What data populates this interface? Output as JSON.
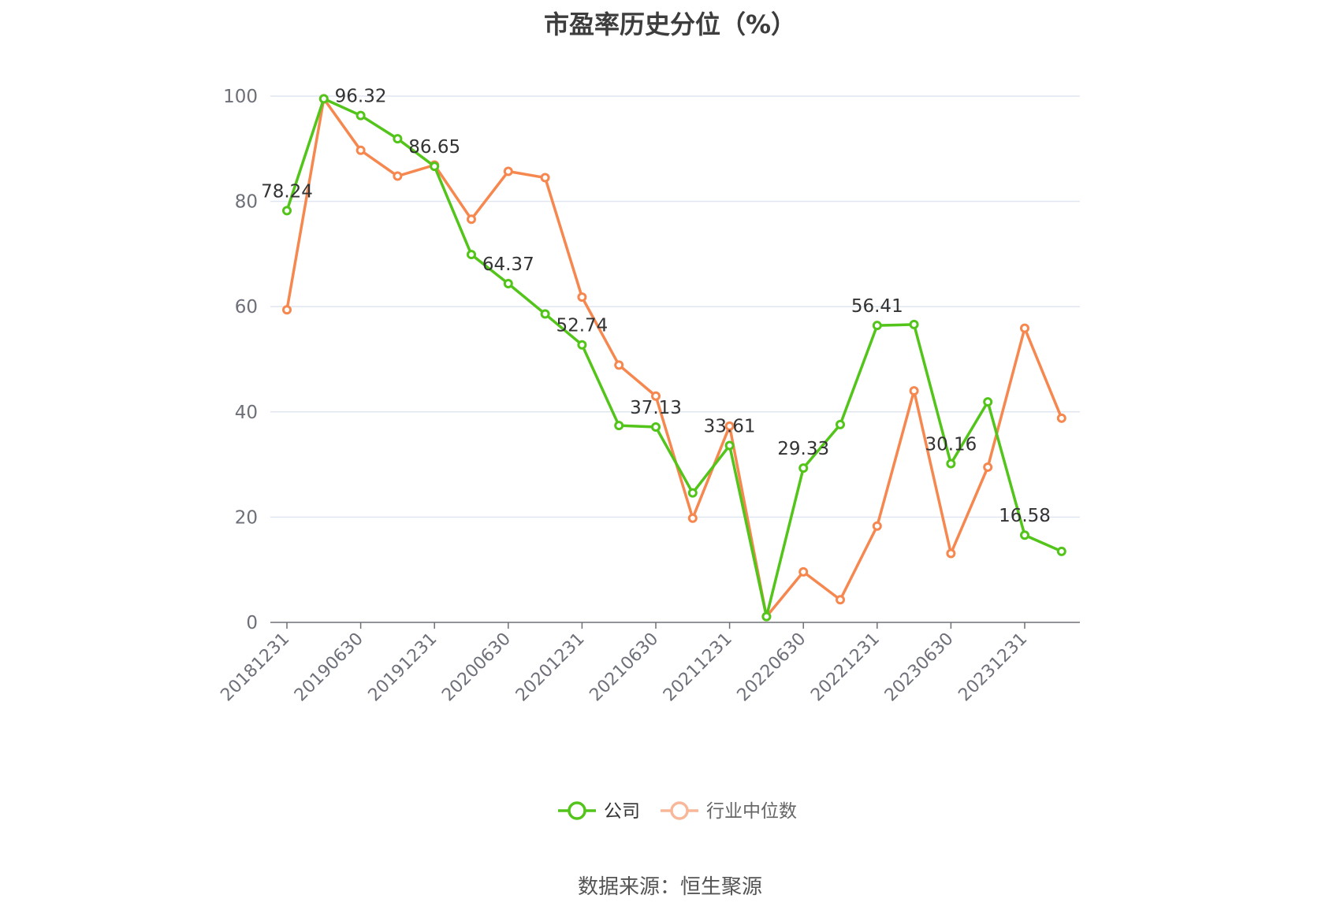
{
  "title": "市盈率历史分位（%）",
  "source": "数据来源：恒生聚源",
  "colors": {
    "company": "#52c41a",
    "industry": "#f5874f",
    "industry_legend": "#f9b79a",
    "grid": "#e0e6f1",
    "axis": "#6e7079"
  },
  "chart_data": {
    "type": "line",
    "title": "市盈率历史分位（%）",
    "ylim": [
      0,
      100
    ],
    "yticks": [
      0,
      20,
      40,
      60,
      80,
      100
    ],
    "x": [
      "20181231",
      "20190331",
      "20190630",
      "20190930",
      "20191231",
      "20200331",
      "20200630",
      "20200930",
      "20201231",
      "20210331",
      "20210630",
      "20210930",
      "20211231",
      "20220331",
      "20220630",
      "20220930",
      "20221231",
      "20230331",
      "20230630",
      "20230930",
      "20231231",
      "20240331"
    ],
    "xtick_labels": [
      "20181231",
      "20190630",
      "20191231",
      "20200630",
      "20201231",
      "20210630",
      "20211231",
      "20220630",
      "20221231",
      "20230630",
      "20231231"
    ],
    "grid": true,
    "legend_placement": "bottom",
    "series": [
      {
        "name": "公司",
        "values": [
          78.24,
          99.5,
          96.32,
          91.9,
          86.65,
          69.9,
          64.37,
          58.6,
          52.74,
          37.4,
          37.13,
          24.6,
          33.61,
          1.1,
          29.33,
          37.6,
          56.41,
          56.6,
          30.16,
          41.9,
          16.58,
          13.5
        ],
        "labels": [
          "78.24",
          "",
          "96.32",
          "",
          "86.65",
          "",
          "64.37",
          "",
          "52.74",
          "",
          "37.13",
          "",
          "33.61",
          "",
          "29.33",
          "",
          "56.41",
          "",
          "30.16",
          "",
          "16.58",
          ""
        ]
      },
      {
        "name": "行业中位数",
        "values": [
          59.4,
          99.5,
          89.7,
          84.8,
          86.9,
          76.6,
          85.7,
          84.5,
          61.8,
          48.9,
          43.0,
          19.8,
          37.3,
          1.1,
          9.6,
          4.3,
          18.3,
          44.0,
          13.1,
          29.5,
          55.9,
          38.8
        ]
      }
    ]
  }
}
